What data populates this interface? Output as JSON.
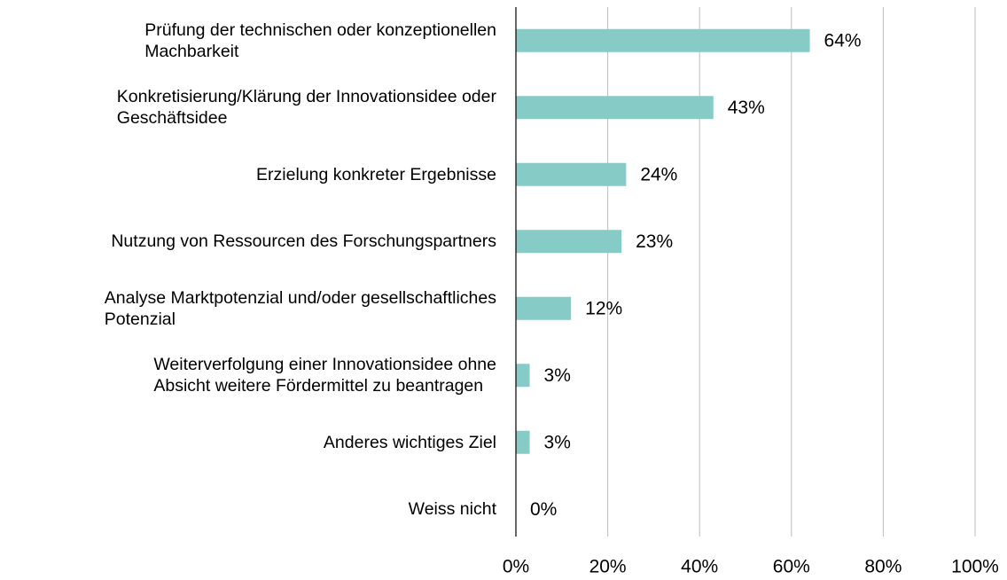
{
  "chart_data": {
    "type": "barh",
    "categories": [
      "Prüfung der technischen oder konzeptionellen\nMachbarkeit",
      "Konkretisierung/Klärung der Innovationsidee oder\nGeschäftsidee",
      "Erzielung konkreter Ergebnisse",
      "Nutzung von Ressourcen des Forschungspartners",
      "Analyse Marktpotenzial und/oder gesellschaftliches\nPotenzial",
      "Weiterverfolgung einer Innovationsidee ohne\nAbsicht weitere Fördermittel zu beantragen",
      "Anderes wichtiges Ziel",
      "Weiss nicht"
    ],
    "values": [
      64,
      43,
      24,
      23,
      12,
      3,
      3,
      0
    ],
    "value_labels": [
      "64%",
      "43%",
      "24%",
      "23%",
      "12%",
      "3%",
      "3%",
      "0%"
    ],
    "color": "#86cbc5",
    "xlim": [
      0,
      100
    ],
    "xticks": [
      {
        "value": 0,
        "label": "0%"
      },
      {
        "value": 20,
        "label": "20%"
      },
      {
        "value": 40,
        "label": "40%"
      },
      {
        "value": 60,
        "label": "60%"
      },
      {
        "value": 80,
        "label": "80%"
      },
      {
        "value": 100,
        "label": "100%"
      }
    ],
    "grid": true
  }
}
